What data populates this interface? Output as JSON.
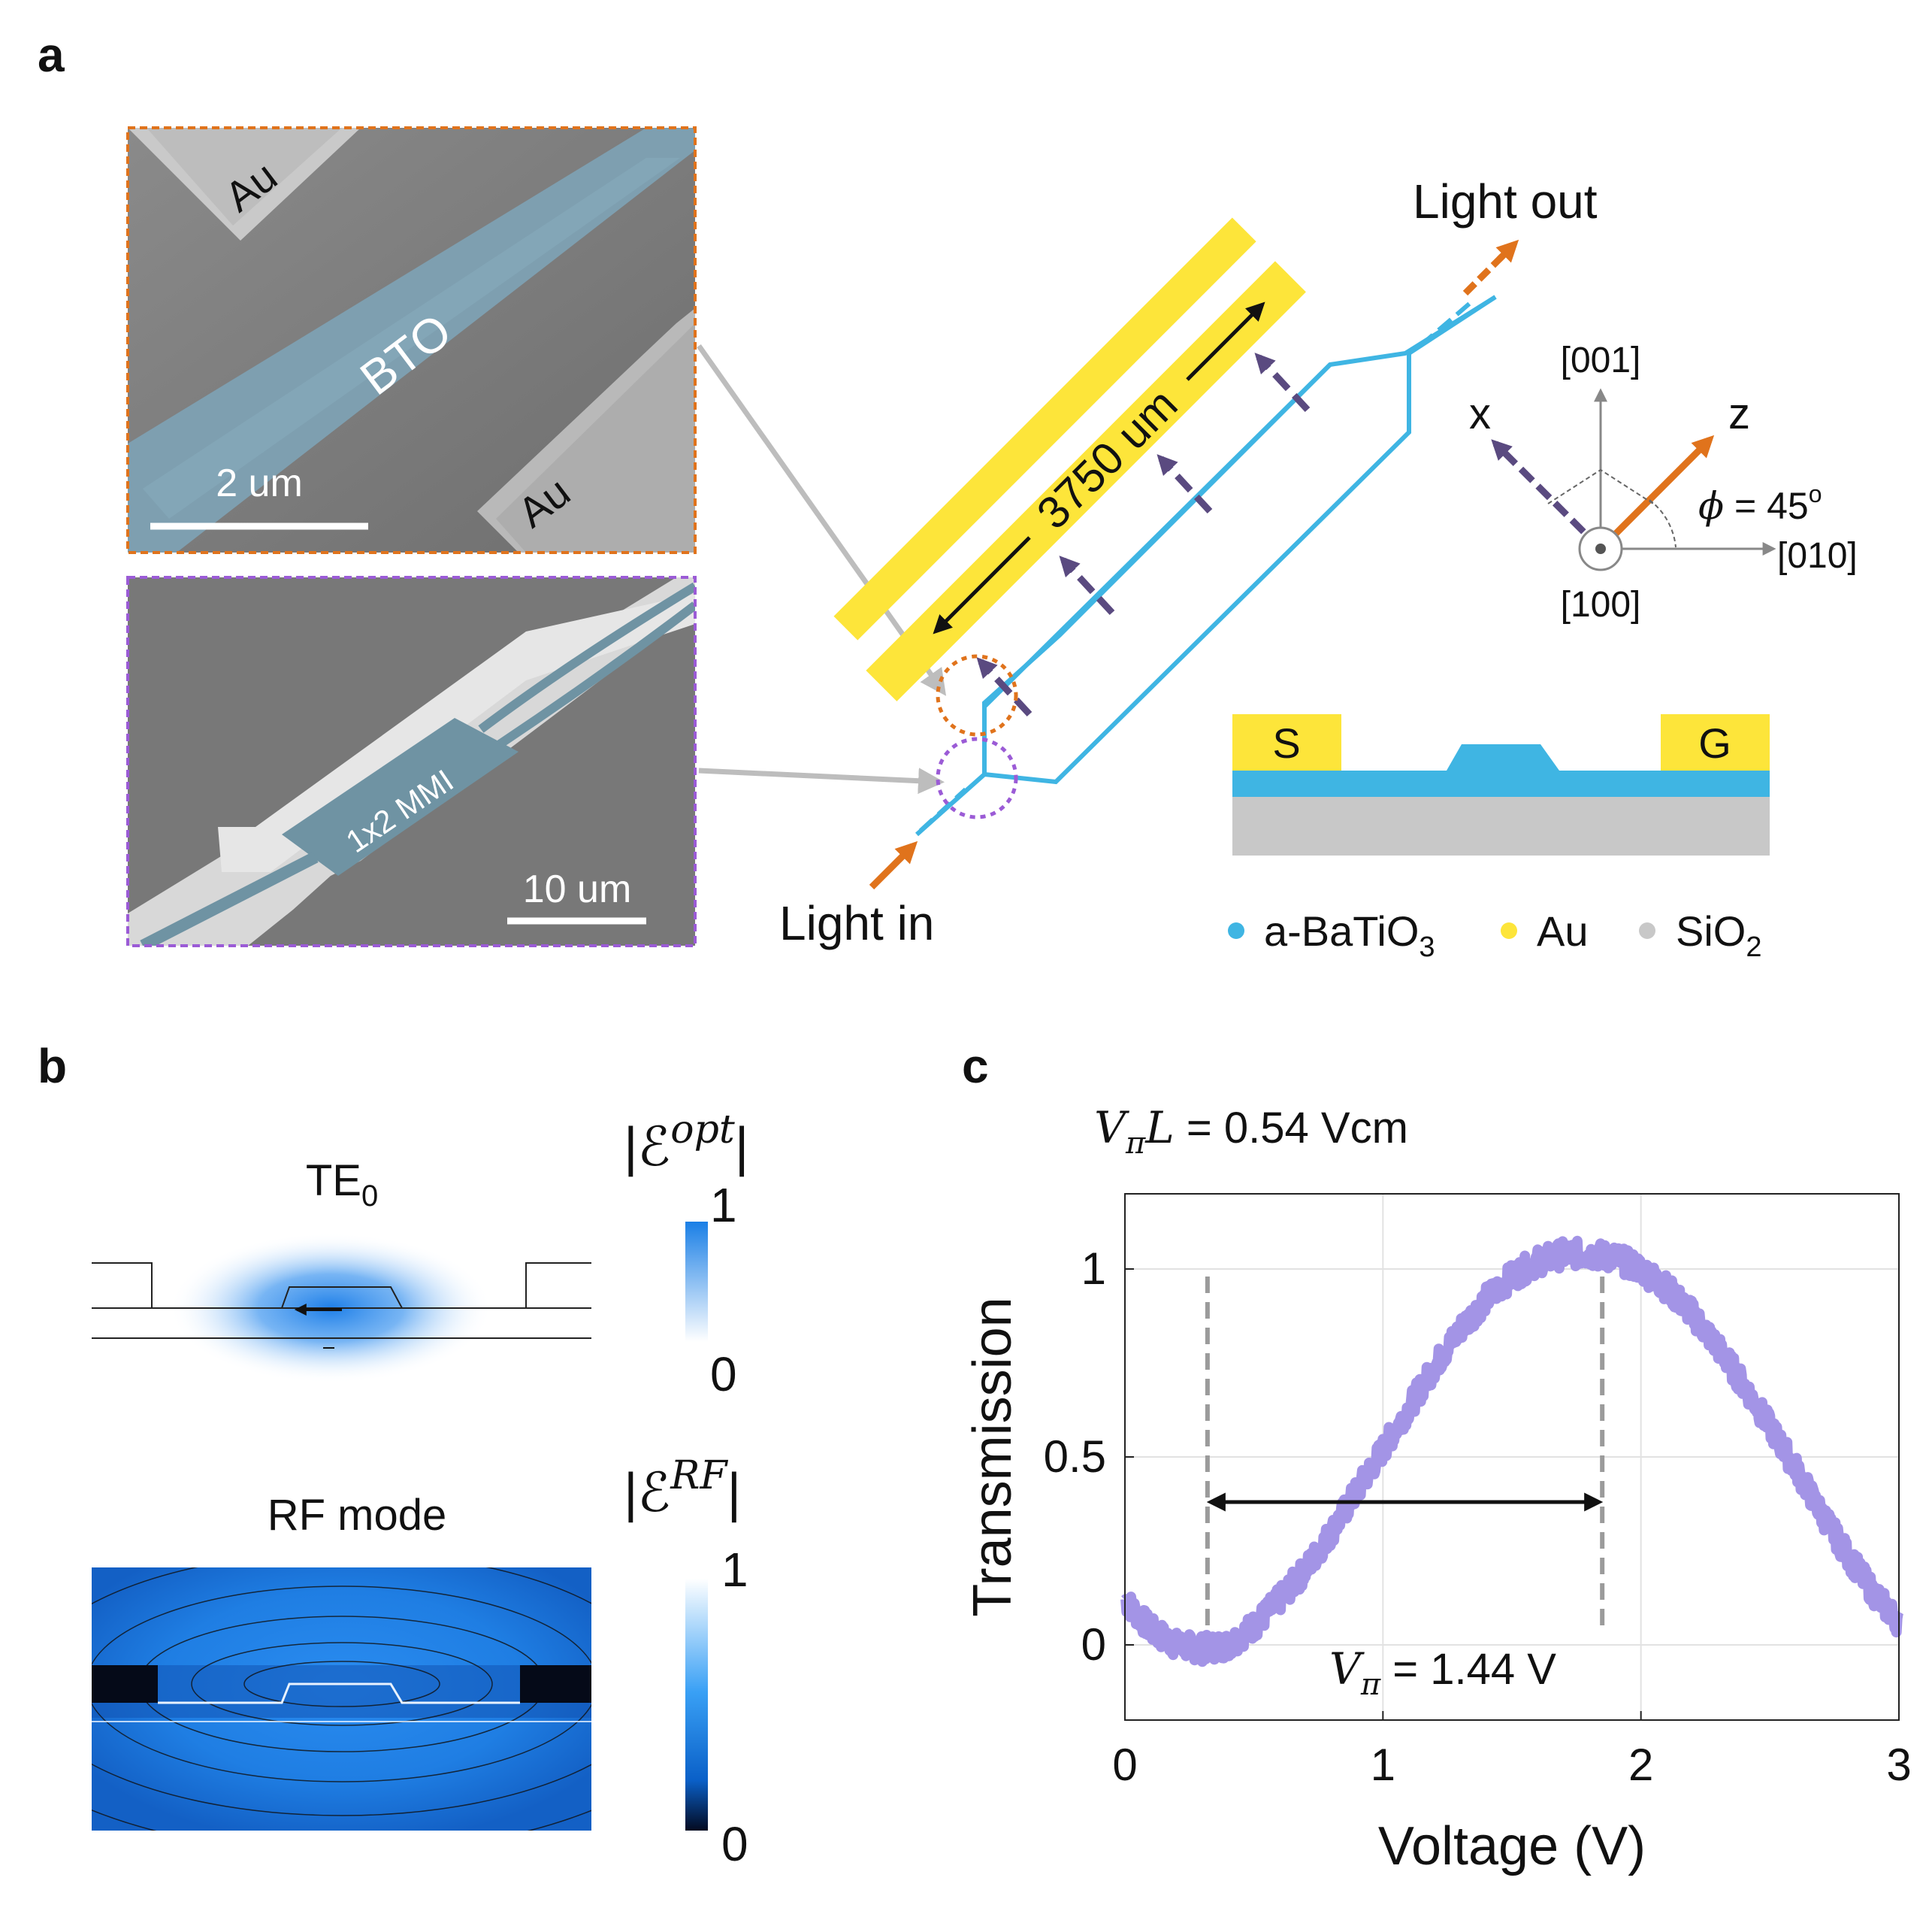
{
  "panels": {
    "a": "a",
    "b": "b",
    "c": "c"
  },
  "panel_a": {
    "sem_top": {
      "au_top": "Au",
      "bto": "BTO",
      "au_bottom": "Au",
      "scale": "2 um"
    },
    "sem_bottom": {
      "mmi": "1x2 MMI",
      "scale": "10 um"
    },
    "device": {
      "light_out": "Light out",
      "light_in": "Light in",
      "length": "3750 um"
    },
    "axes": {
      "x": "x",
      "z": "z",
      "d001": "[001]",
      "d010": "[010]",
      "d100": "[100]",
      "phi": "ϕ",
      "phi_val": " = 45",
      "deg": "o"
    },
    "cross_section": {
      "s": "S",
      "g": "G"
    },
    "legend": {
      "bto_main": "a-BaTiO",
      "bto_sub": "3",
      "au": "Au",
      "sio_main": "SiO",
      "sio_sub": "2"
    },
    "colors": {
      "bto": "#3fb5e3",
      "au": "#fde53a",
      "sio2": "#c8c8c8",
      "light": "#e0731c",
      "arrow": "#5a4a80"
    }
  },
  "panel_b": {
    "te_title_main": "TE",
    "te_title_sub": "0",
    "rf_title": "RF mode",
    "cb1_label": "|ℰ",
    "cb1_sup": "opt",
    "cb1_end": "|",
    "cb2_label": "|ℰ",
    "cb2_sup": "RF",
    "cb2_end": "|",
    "cb_max": "1",
    "cb_min": "0"
  },
  "chart_data": {
    "type": "line",
    "title_var": "V",
    "title_sub": "π",
    "title_var2": "L",
    "title_val": " = 0.54 Vcm",
    "xlabel": "Voltage (V)",
    "ylabel": "Transmission",
    "xlim": [
      0,
      3
    ],
    "ylim": [
      -0.2,
      1.2
    ],
    "xticks": [
      0,
      1,
      2,
      3
    ],
    "yticks": [
      0,
      0.5,
      1
    ],
    "ytick_labels": [
      "0",
      "0.5",
      "1"
    ],
    "grid": true,
    "color": "#a394e6",
    "x": [
      0,
      0.1,
      0.2,
      0.3,
      0.4,
      0.5,
      0.6,
      0.7,
      0.8,
      0.9,
      1.0,
      1.1,
      1.2,
      1.3,
      1.4,
      1.5,
      1.6,
      1.7,
      1.8,
      1.9,
      2.0,
      2.1,
      2.2,
      2.3,
      2.4,
      2.5,
      2.6,
      2.7,
      2.8,
      2.9,
      3.0
    ],
    "y": [
      0.12,
      0.04,
      0.0,
      -0.01,
      0.0,
      0.05,
      0.12,
      0.2,
      0.3,
      0.41,
      0.52,
      0.63,
      0.74,
      0.84,
      0.92,
      0.98,
      1.02,
      1.04,
      1.04,
      1.03,
      1.0,
      0.95,
      0.88,
      0.79,
      0.69,
      0.58,
      0.47,
      0.35,
      0.24,
      0.14,
      0.06
    ],
    "vlines": [
      0.32,
      1.85
    ],
    "vpi_var": "V",
    "vpi_sub": "π",
    "vpi_val": " = 1.44 V"
  }
}
